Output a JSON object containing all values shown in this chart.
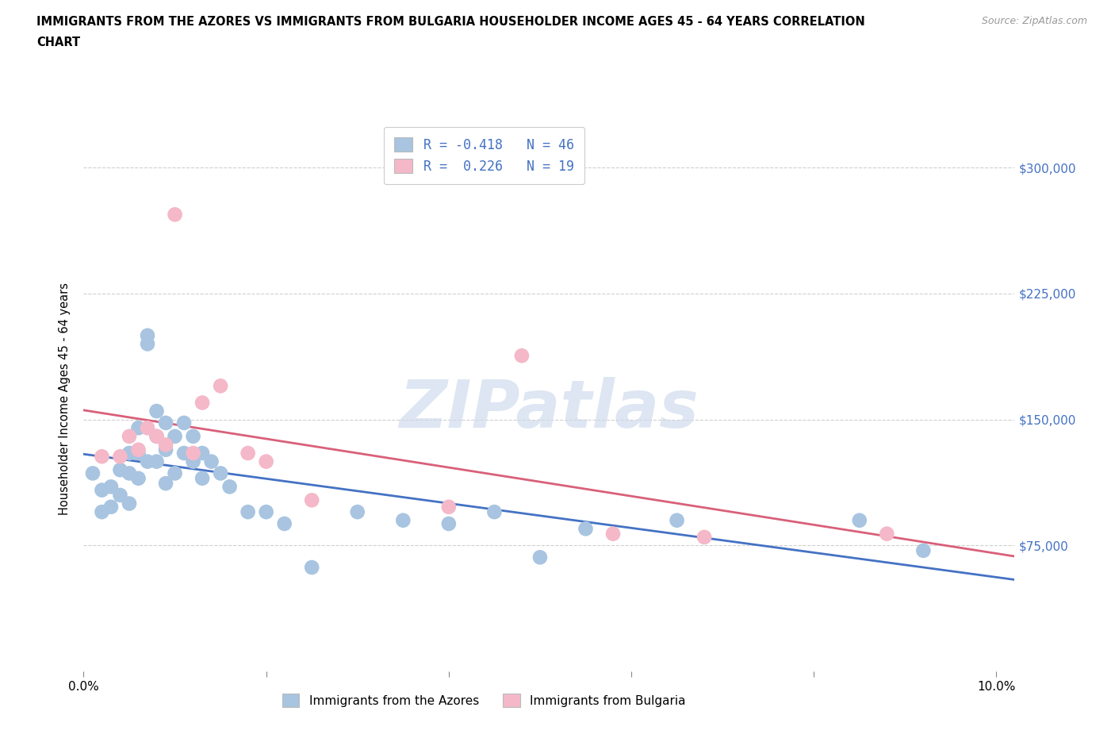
{
  "title_line1": "IMMIGRANTS FROM THE AZORES VS IMMIGRANTS FROM BULGARIA HOUSEHOLDER INCOME AGES 45 - 64 YEARS CORRELATION",
  "title_line2": "CHART",
  "source_text": "Source: ZipAtlas.com",
  "ylabel": "Householder Income Ages 45 - 64 years",
  "watermark": "ZIPatlas",
  "legend_label1": "Immigrants from the Azores",
  "legend_label2": "Immigrants from Bulgaria",
  "legend_R1": "R = -0.418   N = 46",
  "legend_R2": "R =  0.226   N = 19",
  "azores_color": "#a8c4e0",
  "bulgaria_color": "#f4b8c8",
  "azores_line_color": "#4472c4",
  "bulgaria_line_color": "#d9607a",
  "text_blue": "#4472c4",
  "background_color": "#ffffff",
  "grid_color": "#d0d0d0",
  "xlim": [
    0.0,
    0.102
  ],
  "ylim": [
    0,
    325000
  ],
  "ytick_vals": [
    75000,
    150000,
    225000,
    300000
  ],
  "ytick_labels": [
    "$75,000",
    "$150,000",
    "$225,000",
    "$300,000"
  ],
  "azores_x": [
    0.001,
    0.002,
    0.002,
    0.003,
    0.003,
    0.004,
    0.004,
    0.005,
    0.005,
    0.005,
    0.006,
    0.006,
    0.006,
    0.007,
    0.007,
    0.007,
    0.008,
    0.008,
    0.008,
    0.009,
    0.009,
    0.009,
    0.01,
    0.01,
    0.011,
    0.011,
    0.012,
    0.012,
    0.013,
    0.013,
    0.014,
    0.015,
    0.016,
    0.018,
    0.02,
    0.022,
    0.025,
    0.03,
    0.035,
    0.04,
    0.045,
    0.05,
    0.055,
    0.065,
    0.085,
    0.092
  ],
  "azores_y": [
    118000,
    108000,
    95000,
    110000,
    98000,
    120000,
    105000,
    130000,
    118000,
    100000,
    145000,
    130000,
    115000,
    200000,
    195000,
    125000,
    155000,
    140000,
    125000,
    148000,
    132000,
    112000,
    140000,
    118000,
    148000,
    130000,
    140000,
    125000,
    130000,
    115000,
    125000,
    118000,
    110000,
    95000,
    95000,
    88000,
    62000,
    95000,
    90000,
    88000,
    95000,
    68000,
    85000,
    90000,
    90000,
    72000
  ],
  "bulgaria_x": [
    0.002,
    0.004,
    0.005,
    0.006,
    0.007,
    0.008,
    0.009,
    0.01,
    0.012,
    0.013,
    0.015,
    0.018,
    0.02,
    0.025,
    0.04,
    0.048,
    0.058,
    0.068,
    0.088
  ],
  "bulgaria_y": [
    128000,
    128000,
    140000,
    132000,
    145000,
    140000,
    135000,
    272000,
    130000,
    160000,
    170000,
    130000,
    125000,
    102000,
    98000,
    188000,
    82000,
    80000,
    82000
  ]
}
